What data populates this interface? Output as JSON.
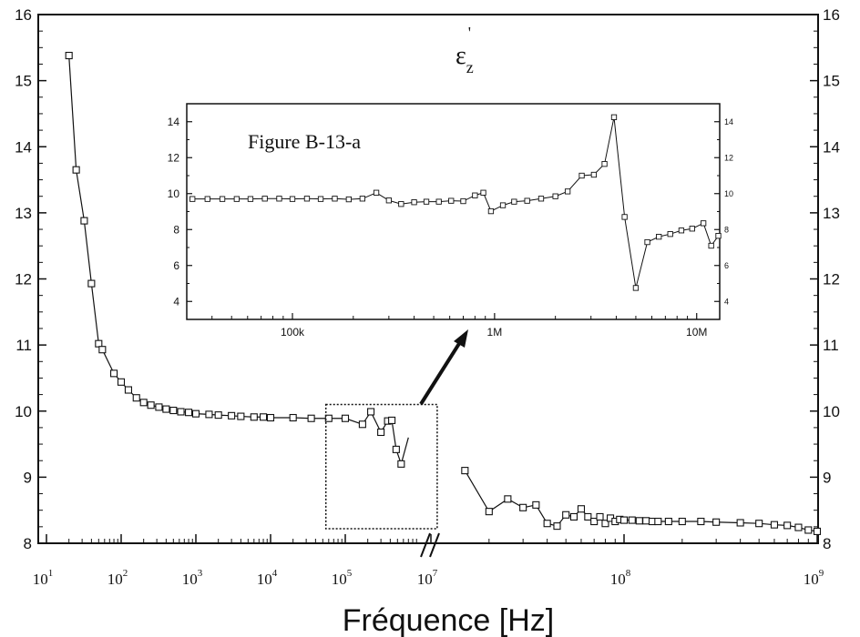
{
  "chart_data": [
    {
      "type": "line",
      "role": "main",
      "series_label": "ε",
      "series_label_sub": "z",
      "series_label_sup": "'",
      "xlabel": "Fréquence [Hz]",
      "ylabel": "",
      "xscale": "log (broken axis between 10^6 and 10^7)",
      "ylim": [
        8,
        16
      ],
      "yticks": [
        "8",
        "9",
        "10",
        "11",
        "12",
        "13",
        "14",
        "15",
        "16"
      ],
      "xticks": [
        {
          "base": "10",
          "exp": "1"
        },
        {
          "base": "10",
          "exp": "2"
        },
        {
          "base": "10",
          "exp": "3"
        },
        {
          "base": "10",
          "exp": "4"
        },
        {
          "base": "10",
          "exp": "5"
        },
        {
          "base": "10",
          "exp": "7"
        },
        {
          "base": "10",
          "exp": "8"
        },
        {
          "base": "10",
          "exp": "9"
        }
      ],
      "series": [
        {
          "marker": "open-square",
          "segment_1": {
            "x": [
              20,
              25,
              32,
              40,
              50,
              56,
              80,
              100,
              125,
              160,
              200,
              250,
              320,
              400,
              500,
              630,
              800,
              1000,
              1500,
              2000,
              3000,
              4000,
              6000,
              8000,
              10000,
              20000,
              35000,
              60000,
              100000,
              170000,
              220000,
              300000,
              370000,
              420000,
              480000,
              560000,
              700000
            ],
            "y": [
              15.38,
              13.65,
              12.88,
              11.93,
              11.02,
              10.93,
              10.57,
              10.44,
              10.32,
              10.2,
              10.13,
              10.09,
              10.06,
              10.03,
              10.01,
              9.99,
              9.98,
              9.96,
              9.95,
              9.94,
              9.93,
              9.92,
              9.91,
              9.91,
              9.9,
              9.9,
              9.89,
              9.89,
              9.89,
              9.8,
              9.99,
              9.68,
              9.85,
              9.86,
              9.42,
              9.2,
              9.6
            ]
          },
          "segment_2": {
            "x": [
              15000000,
              20000000,
              25000000,
              30000000,
              35000000,
              40000000,
              45000000,
              50000000,
              55000000,
              60000000,
              65000000,
              70000000,
              75000000,
              80000000,
              85000000,
              90000000,
              95000000,
              100000000,
              110000000,
              120000000,
              130000000,
              140000000,
              150000000,
              170000000,
              200000000,
              250000000,
              300000000,
              400000000,
              500000000,
              600000000,
              700000000,
              800000000,
              900000000,
              1000000000
            ],
            "y": [
              9.1,
              8.48,
              8.67,
              8.54,
              8.58,
              8.3,
              8.26,
              8.43,
              8.4,
              8.52,
              8.4,
              8.33,
              8.4,
              8.3,
              8.38,
              8.33,
              8.36,
              8.35,
              8.35,
              8.34,
              8.34,
              8.33,
              8.33,
              8.33,
              8.33,
              8.33,
              8.32,
              8.31,
              8.3,
              8.28,
              8.27,
              8.24,
              8.2,
              8.18
            ]
          }
        }
      ],
      "annotation_box": {
        "x_from": 55000,
        "x_to": 1700000,
        "y_from": 8.22,
        "y_to": 10.1
      }
    },
    {
      "type": "line",
      "role": "inset",
      "title": "Figure B-13-a",
      "xscale": "log",
      "xlim": [
        30000,
        13000000
      ],
      "ylim": [
        3,
        15
      ],
      "yticks": [
        "4",
        "6",
        "8",
        "10",
        "12",
        "14"
      ],
      "xticks": [
        {
          "label": "100k",
          "value": 100000
        },
        {
          "label": "1M",
          "value": 1000000
        },
        {
          "label": "10M",
          "value": 10000000
        }
      ],
      "series": [
        {
          "marker": "open-square",
          "x": [
            32000,
            38000,
            45000,
            53000,
            62000,
            73000,
            86000,
            100000,
            118000,
            138000,
            162000,
            190000,
            222000,
            260000,
            300000,
            345000,
            400000,
            460000,
            530000,
            610000,
            700000,
            800000,
            880000,
            960000,
            1100000,
            1250000,
            1450000,
            1700000,
            2000000,
            2300000,
            2700000,
            3100000,
            3500000,
            3900000,
            4400000,
            5000000,
            5700000,
            6500000,
            7400000,
            8400000,
            9500000,
            10800000,
            11800000,
            12800000
          ],
          "y": [
            9.7,
            9.7,
            9.7,
            9.7,
            9.7,
            9.72,
            9.72,
            9.7,
            9.72,
            9.7,
            9.72,
            9.68,
            9.72,
            10.05,
            9.62,
            9.42,
            9.52,
            9.55,
            9.55,
            9.6,
            9.58,
            9.9,
            10.05,
            9.02,
            9.35,
            9.55,
            9.6,
            9.72,
            9.85,
            10.12,
            11.0,
            11.05,
            11.65,
            14.25,
            8.7,
            4.75,
            7.3,
            7.6,
            7.75,
            7.95,
            8.05,
            8.35,
            7.1,
            7.65
          ]
        }
      ]
    }
  ]
}
